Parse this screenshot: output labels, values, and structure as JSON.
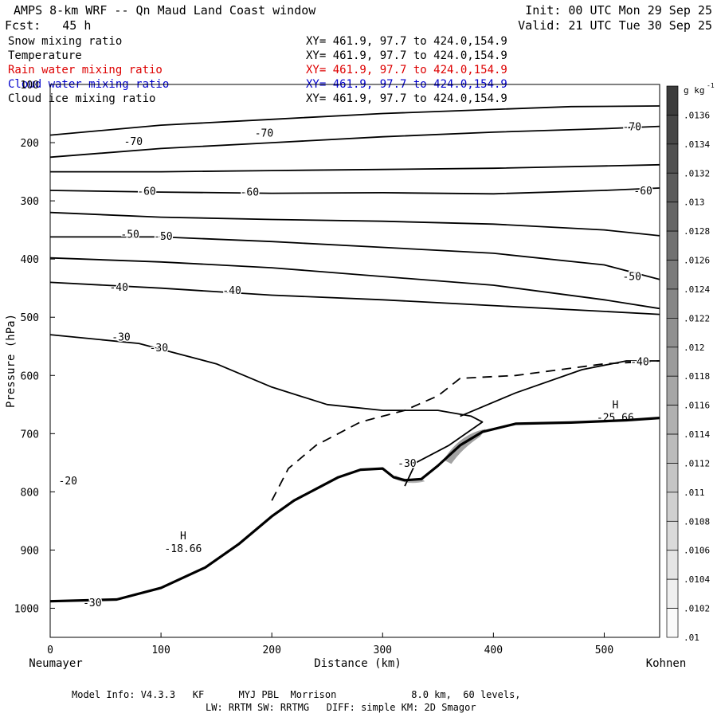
{
  "header": {
    "title": "AMPS 8-km WRF -- Qn Maud Land Coast window",
    "forecast": "Fcst:   45 h",
    "init": "Init: 00 UTC Mon 29 Sep 25",
    "valid": "Valid: 21 UTC Tue 30 Sep 25"
  },
  "fields": [
    {
      "name": "Snow mixing ratio",
      "xy": "XY= 461.9, 97.7 to 424.0,154.9",
      "color": "#000000"
    },
    {
      "name": "Temperature",
      "xy": "XY= 461.9, 97.7 to 424.0,154.9",
      "color": "#000000"
    },
    {
      "name": "Rain water mixing ratio",
      "xy": "XY= 461.9, 97.7 to 424.0,154.9",
      "color": "#dd0000"
    },
    {
      "name": "Cloud water mixing ratio",
      "xy": "XY= 461.9, 97.7 to 424.0,154.9",
      "color": "#0000cc"
    },
    {
      "name": "Cloud ice mixing ratio",
      "xy": "XY= 461.9, 97.7 to 424.0,154.9",
      "color": "#000000"
    }
  ],
  "footer": {
    "line1": "Model Info: V4.3.3   KF      MYJ PBL  Morrison             8.0 km,  60 levels,",
    "line2": "LW: RRTM SW: RRTMG   DIFF: simple KM: 2D Smagor"
  },
  "chart_data": {
    "type": "line",
    "xlabel": "Distance (km)",
    "ylabel": "Pressure (hPa)",
    "xlim": [
      0,
      550
    ],
    "ylim": [
      1050,
      100
    ],
    "x_ticks": [
      0,
      100,
      200,
      300,
      400,
      500
    ],
    "y_ticks": [
      100,
      200,
      300,
      400,
      500,
      600,
      700,
      800,
      900,
      1000
    ],
    "x_end_labels": {
      "left": "Neumayer",
      "right": "Kohnen"
    },
    "colorbar": {
      "unit": "g kg",
      "unit_exp": "-1",
      "ticks": [
        ".0136",
        ".0134",
        ".0132",
        ".013",
        ".0128",
        ".0126",
        ".0124",
        ".0122",
        ".012",
        ".0118",
        ".0116",
        ".0114",
        ".0112",
        ".011",
        ".0108",
        ".0106",
        ".0104",
        ".0102",
        ".01"
      ]
    },
    "terrain_pressure": [
      [
        0,
        988
      ],
      [
        60,
        985
      ],
      [
        100,
        965
      ],
      [
        140,
        930
      ],
      [
        170,
        890
      ],
      [
        200,
        842
      ],
      [
        220,
        815
      ],
      [
        240,
        795
      ],
      [
        260,
        775
      ],
      [
        280,
        762
      ],
      [
        300,
        760
      ],
      [
        310,
        775
      ],
      [
        320,
        780
      ],
      [
        335,
        778
      ],
      [
        350,
        755
      ],
      [
        370,
        720
      ],
      [
        390,
        697
      ],
      [
        420,
        683
      ],
      [
        470,
        681
      ],
      [
        520,
        677
      ],
      [
        550,
        673
      ]
    ],
    "temperature_contours": [
      {
        "label": "-70",
        "points": [
          [
            0,
            187
          ],
          [
            100,
            170
          ],
          [
            200,
            160
          ],
          [
            300,
            150
          ],
          [
            400,
            143
          ],
          [
            470,
            138
          ],
          [
            550,
            137
          ]
        ]
      },
      {
        "label": "-70",
        "points": [
          [
            0,
            225
          ],
          [
            100,
            210
          ],
          [
            200,
            200
          ],
          [
            300,
            190
          ],
          [
            400,
            182
          ],
          [
            500,
            176
          ],
          [
            550,
            172
          ]
        ]
      },
      {
        "label": "",
        "points": [
          [
            0,
            250
          ],
          [
            100,
            250
          ],
          [
            200,
            248
          ],
          [
            300,
            246
          ],
          [
            400,
            244
          ],
          [
            500,
            240
          ],
          [
            550,
            238
          ]
        ]
      },
      {
        "label": "-60",
        "points": [
          [
            0,
            282
          ],
          [
            100,
            285
          ],
          [
            200,
            287
          ],
          [
            300,
            286
          ],
          [
            400,
            288
          ],
          [
            500,
            282
          ],
          [
            550,
            278
          ]
        ]
      },
      {
        "label": "",
        "points": [
          [
            0,
            320
          ],
          [
            100,
            328
          ],
          [
            200,
            332
          ],
          [
            300,
            335
          ],
          [
            400,
            340
          ],
          [
            500,
            350
          ],
          [
            550,
            360
          ]
        ]
      },
      {
        "label": "-50",
        "points": [
          [
            0,
            362
          ],
          [
            100,
            362
          ],
          [
            200,
            370
          ],
          [
            300,
            380
          ],
          [
            400,
            390
          ],
          [
            500,
            410
          ],
          [
            550,
            435
          ]
        ]
      },
      {
        "label": "-40",
        "points": [
          [
            0,
            440
          ],
          [
            100,
            450
          ],
          [
            200,
            462
          ],
          [
            300,
            470
          ],
          [
            400,
            480
          ],
          [
            500,
            490
          ],
          [
            550,
            495
          ]
        ]
      },
      {
        "label": "",
        "points": [
          [
            0,
            398
          ],
          [
            100,
            405
          ],
          [
            200,
            415
          ],
          [
            300,
            430
          ],
          [
            400,
            445
          ],
          [
            500,
            470
          ],
          [
            550,
            485
          ]
        ]
      },
      {
        "label": "-30",
        "points": [
          [
            0,
            530
          ],
          [
            80,
            545
          ],
          [
            150,
            580
          ],
          [
            200,
            620
          ],
          [
            250,
            650
          ],
          [
            300,
            660
          ],
          [
            350,
            660
          ],
          [
            380,
            670
          ],
          [
            390,
            680
          ],
          [
            360,
            720
          ],
          [
            330,
            750
          ],
          [
            320,
            790
          ]
        ]
      },
      {
        "label": "-40",
        "points": [
          [
            370,
            670
          ],
          [
            420,
            630
          ],
          [
            480,
            590
          ],
          [
            520,
            575
          ],
          [
            550,
            575
          ]
        ]
      }
    ],
    "dashed_contours": [
      {
        "label": "",
        "points": [
          [
            200,
            815
          ],
          [
            215,
            760
          ],
          [
            240,
            720
          ],
          [
            280,
            680
          ],
          [
            320,
            660
          ],
          [
            350,
            635
          ],
          [
            370,
            605
          ],
          [
            420,
            600
          ],
          [
            500,
            580
          ],
          [
            550,
            575
          ]
        ]
      }
    ],
    "contour_labels": [
      {
        "text": "-70",
        "x": 75,
        "y": 197
      },
      {
        "text": "-70",
        "x": 193,
        "y": 183
      },
      {
        "text": "-70",
        "x": 525,
        "y": 172
      },
      {
        "text": "-60",
        "x": 87,
        "y": 283
      },
      {
        "text": "-60",
        "x": 180,
        "y": 284
      },
      {
        "text": "-60",
        "x": 535,
        "y": 282
      },
      {
        "text": "-50",
        "x": 72,
        "y": 357
      },
      {
        "text": "-50",
        "x": 102,
        "y": 360
      },
      {
        "text": "-50",
        "x": 525,
        "y": 429
      },
      {
        "text": "-40",
        "x": 62,
        "y": 448
      },
      {
        "text": "-40",
        "x": 164,
        "y": 453
      },
      {
        "text": "-40",
        "x": 532,
        "y": 576
      },
      {
        "text": "-30",
        "x": 64,
        "y": 533
      },
      {
        "text": "-30",
        "x": 98,
        "y": 552
      },
      {
        "text": "-30",
        "x": 322,
        "y": 750
      },
      {
        "text": "-30",
        "x": 38,
        "y": 990
      },
      {
        "text": "-20",
        "x": 16,
        "y": 780
      }
    ],
    "extrema": [
      {
        "type": "H",
        "value": "-18.66",
        "x": 120,
        "y": 890
      },
      {
        "type": "H",
        "value": "-25.66",
        "x": 510,
        "y": 665
      }
    ]
  }
}
